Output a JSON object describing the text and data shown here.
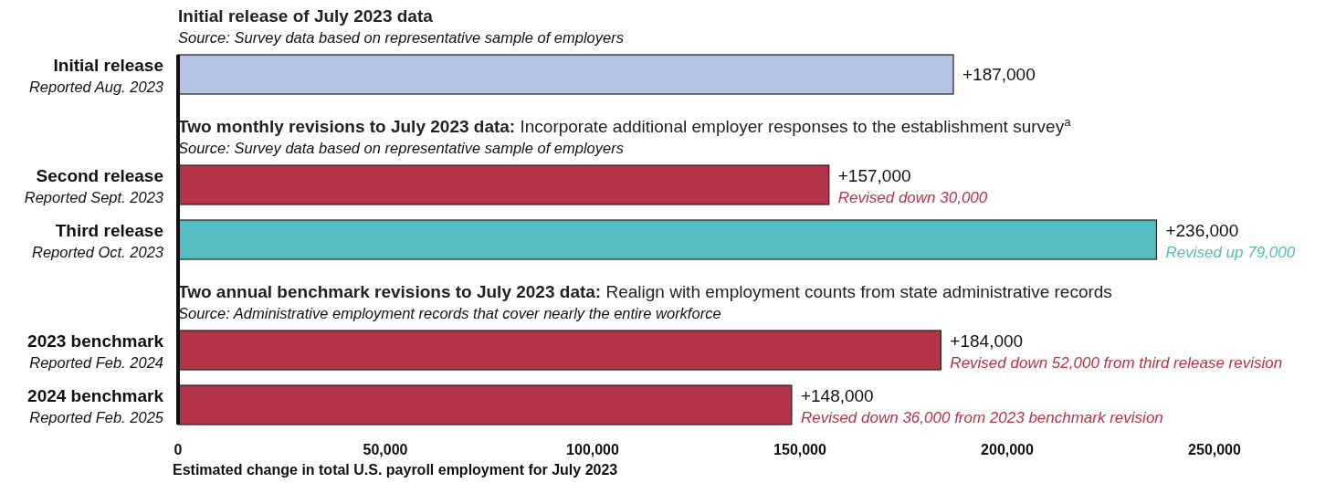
{
  "chart_data": {
    "type": "bar",
    "orientation": "horizontal",
    "categories": [
      "Initial release\nReported Aug. 2023",
      "Second release\nReported Sept. 2023",
      "Third release\nReported Oct. 2023",
      "2023 benchmark\nReported Feb. 2024",
      "2024 benchmark\nReported Feb. 2025"
    ],
    "values": [
      187000,
      157000,
      236000,
      184000,
      148000
    ],
    "colors": [
      "#b4c2e4",
      "#b33448",
      "#55bdc1",
      "#b33448",
      "#b33448"
    ],
    "value_labels": [
      "+187,000",
      "+157,000\nRevised down 30,000",
      "+236,000\nRevised up 79,000",
      "+184,000\nRevised down 52,000 from third release revision",
      "+148,000\nRevised down 36,000 from 2023 benchmark revision"
    ],
    "xlim": [
      0,
      250000
    ],
    "xticks": [
      {
        "value": 0,
        "label": "0"
      },
      {
        "value": 50000,
        "label": "50,000"
      },
      {
        "value": 100000,
        "label": "100,000"
      },
      {
        "value": 150000,
        "label": "150,000"
      },
      {
        "value": 200000,
        "label": "200,000"
      },
      {
        "value": 250000,
        "label": "250,000"
      }
    ],
    "xlabel": "Estimated change in total U.S. payroll employment for July 2023",
    "annotations": [
      "Initial release of July 2023 data",
      "Source: Survey data based on representative sample of employers",
      "Two monthly revisions to July 2023 data: Incorporate additional employer responses to the establishment survey$^{a}$",
      "Source: Survey data based on representative sample of employers",
      "Two annual benchmark revisions to July 2023 data: Realign with employment counts from state administrative records",
      "Source: Administrative employment records that cover nearly the entire workforce"
    ],
    "grid": false
  }
}
